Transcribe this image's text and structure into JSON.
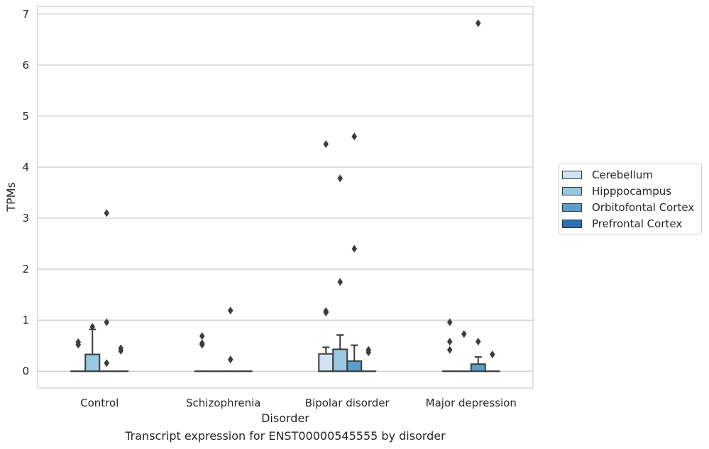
{
  "chart_data": {
    "type": "box",
    "title": "",
    "caption": "Transcript expression for ENST00000545555 by disorder",
    "xlabel": "Disorder",
    "ylabel": "TPMs",
    "ylim": [
      -0.33,
      7.15
    ],
    "yticks": [
      0,
      1,
      2,
      3,
      4,
      5,
      6,
      7
    ],
    "grid": true,
    "legend_position": "right",
    "categories": [
      "Control",
      "Schizophrenia",
      "Bipolar disorder",
      "Major depression"
    ],
    "series": [
      {
        "name": "Cerebellum",
        "color": "#d1e3f3",
        "boxes": [
          {
            "q1": 0,
            "median": 0,
            "q3": 0,
            "whislo": 0,
            "whishi": 0,
            "fliers": [
              0.52,
              0.57
            ]
          },
          {
            "q1": 0,
            "median": 0,
            "q3": 0,
            "whislo": 0,
            "whishi": 0,
            "fliers": [
              0.52,
              0.55,
              0.69
            ]
          },
          {
            "q1": 0,
            "median": 0,
            "q3": 0.34,
            "whislo": 0,
            "whishi": 0.47,
            "fliers": [
              1.15,
              1.18,
              4.45
            ]
          },
          {
            "q1": 0,
            "median": 0,
            "q3": 0,
            "whislo": 0,
            "whishi": 0,
            "fliers": [
              0.42,
              0.58,
              0.96
            ]
          }
        ]
      },
      {
        "name": "Hipppocampus",
        "color": "#9ac8e0",
        "boxes": [
          {
            "q1": 0,
            "median": 0,
            "q3": 0.33,
            "whislo": 0,
            "whishi": 0.82,
            "fliers": [
              0.87
            ]
          },
          {
            "q1": 0,
            "median": 0,
            "q3": 0,
            "whislo": 0,
            "whishi": 0,
            "fliers": []
          },
          {
            "q1": 0,
            "median": 0,
            "q3": 0.43,
            "whislo": 0,
            "whishi": 0.71,
            "fliers": [
              1.75,
              3.78
            ]
          },
          {
            "q1": 0,
            "median": 0,
            "q3": 0,
            "whislo": 0,
            "whishi": 0,
            "fliers": [
              0.73
            ]
          }
        ]
      },
      {
        "name": "Orbitofontal Cortex",
        "color": "#5a9ec9",
        "boxes": [
          {
            "q1": 0,
            "median": 0,
            "q3": 0,
            "whislo": 0,
            "whishi": 0,
            "fliers": [
              0.16,
              0.96,
              3.1
            ]
          },
          {
            "q1": 0,
            "median": 0,
            "q3": 0,
            "whislo": 0,
            "whishi": 0,
            "fliers": [
              0.23,
              1.19
            ]
          },
          {
            "q1": 0,
            "median": 0,
            "q3": 0.2,
            "whislo": 0,
            "whishi": 0.51,
            "fliers": [
              2.4,
              4.6
            ]
          },
          {
            "q1": 0,
            "median": 0,
            "q3": 0.14,
            "whislo": 0,
            "whishi": 0.28,
            "fliers": [
              0.58,
              6.82
            ]
          }
        ]
      },
      {
        "name": "Prefrontal Cortex",
        "color": "#2a71b1",
        "boxes": [
          {
            "q1": 0,
            "median": 0,
            "q3": 0,
            "whislo": 0,
            "whishi": 0,
            "fliers": [
              0.4,
              0.45
            ]
          },
          {
            "q1": 0,
            "median": 0,
            "q3": 0,
            "whislo": 0,
            "whishi": 0,
            "fliers": []
          },
          {
            "q1": 0,
            "median": 0,
            "q3": 0,
            "whislo": 0,
            "whishi": 0,
            "fliers": [
              0.37,
              0.42
            ]
          },
          {
            "q1": 0,
            "median": 0,
            "q3": 0,
            "whislo": 0,
            "whishi": 0,
            "fliers": [
              0.33
            ]
          }
        ]
      }
    ]
  }
}
